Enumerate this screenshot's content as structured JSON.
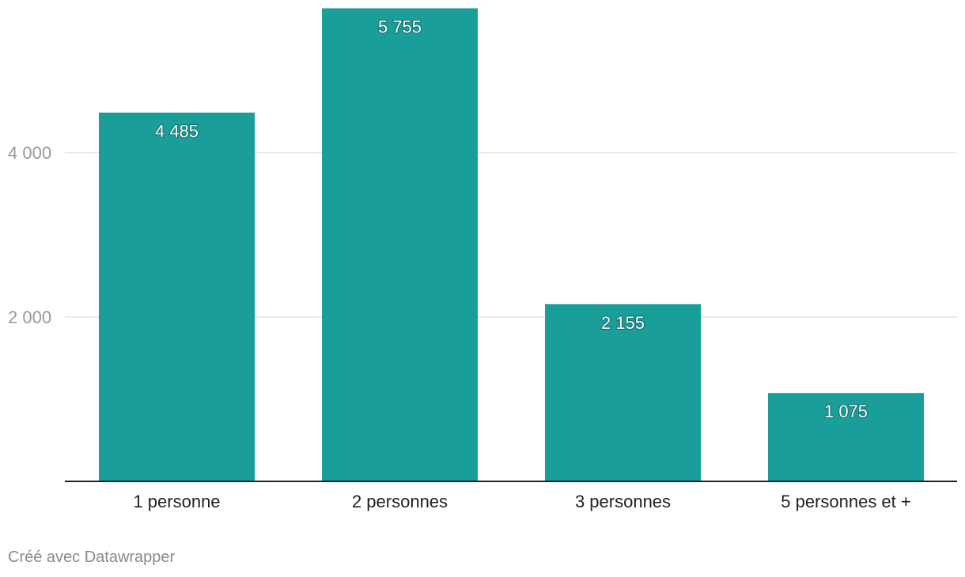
{
  "chart_data": {
    "type": "bar",
    "categories": [
      "1 personne",
      "2 personnes",
      "3 personnes",
      "5 personnes et +"
    ],
    "values": [
      4485,
      5755,
      2155,
      1075
    ],
    "value_labels": [
      "4 485",
      "5 755",
      "2 155",
      "1 075"
    ],
    "ylim": [
      0,
      5800
    ],
    "yticks": [
      2000,
      4000
    ],
    "ytick_labels": [
      "2 000",
      "4 000"
    ],
    "grid": true,
    "bar_color": "#1a9e9a",
    "title": "",
    "xlabel": "",
    "ylabel": ""
  },
  "footer": {
    "credit": "Créé avec Datawrapper"
  }
}
